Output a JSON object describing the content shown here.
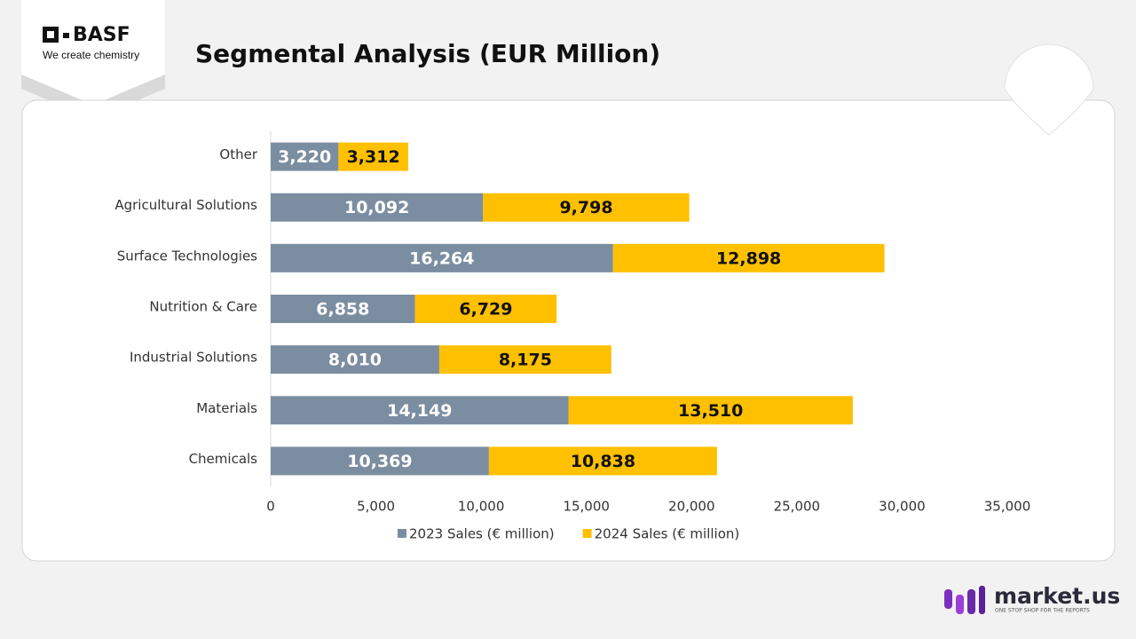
{
  "header": {
    "logo": "BASF",
    "tagline": "We create chemistry"
  },
  "footer": {
    "brand": "market.us",
    "slogan": "ONE STOP SHOP FOR THE REPORTS"
  },
  "chart_data": {
    "type": "stacked-hbar",
    "title": "Segmental Analysis (EUR Million)",
    "categories": [
      "Other",
      "Agricultural Solutions",
      "Surface Technologies",
      "Nutrition & Care",
      "Industrial Solutions",
      "Materials",
      "Chemicals"
    ],
    "series": [
      {
        "name": "2023 Sales (€ million)",
        "color": "#7b8da1",
        "label_color": "#ffffff",
        "values": [
          3220,
          10092,
          16264,
          6858,
          8010,
          14149,
          10369
        ],
        "value_labels": [
          "3,220",
          "10,092",
          "16,264",
          "6,858",
          "8,010",
          "14,149",
          "10,369"
        ]
      },
      {
        "name": "2024 Sales (€ million)",
        "color": "#ffc000",
        "label_color": "#111111",
        "values": [
          3312,
          9798,
          12898,
          6729,
          8175,
          13510,
          10838
        ],
        "value_labels": [
          "3,312",
          "9,798",
          "12,898",
          "6,729",
          "8,175",
          "13,510",
          "10,838"
        ]
      }
    ],
    "xlim": [
      0,
      35000
    ],
    "xticks": [
      0,
      {
        "value": 5000,
        "label": "5,000"
      },
      {
        "value": 10000,
        "label": "10,000"
      },
      {
        "value": 15000,
        "label": "15,000"
      },
      {
        "value": 20000,
        "label": "20,000"
      },
      {
        "value": 25000,
        "label": "25,000"
      },
      {
        "value": 30000,
        "label": "30,000"
      },
      {
        "value": 35000,
        "label": "35,000"
      }
    ],
    "grid": false,
    "legend": "bottom"
  }
}
